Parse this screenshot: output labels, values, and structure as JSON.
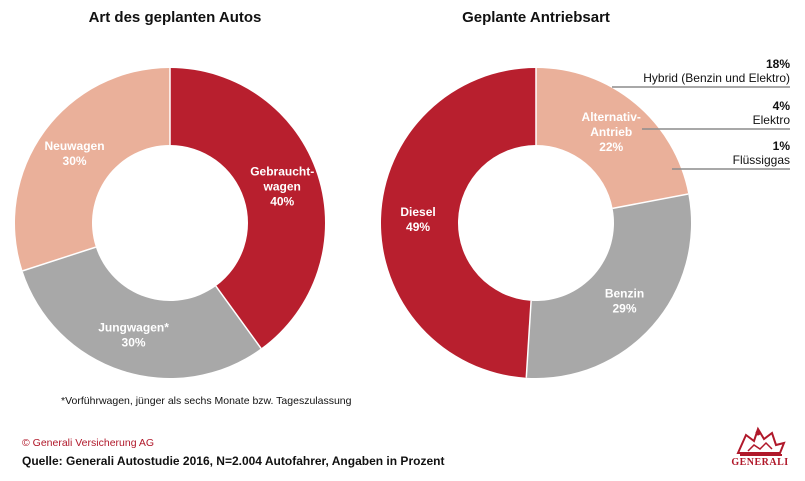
{
  "chart_data": [
    {
      "type": "pie",
      "title": "Art des geplanten Autos",
      "donut": true,
      "slices": [
        {
          "label": [
            "Gebraucht-",
            "wagen"
          ],
          "value": 40,
          "pct_text": "40%",
          "color": "#b81f2e"
        },
        {
          "label": [
            "Jungwagen*"
          ],
          "value": 30,
          "pct_text": "30%",
          "color": "#a8a8a8"
        },
        {
          "label": [
            "Neuwagen"
          ],
          "value": 30,
          "pct_text": "30%",
          "color": "#eab09a"
        }
      ]
    },
    {
      "type": "pie",
      "title": "Geplante Antriebsart",
      "donut": true,
      "slices": [
        {
          "label": [
            "Alternativ-",
            "Antrieb"
          ],
          "value": 22,
          "pct_text": "22%",
          "color": "#eab09a"
        },
        {
          "label": [
            "Benzin"
          ],
          "value": 29,
          "pct_text": "29%",
          "color": "#a8a8a8"
        },
        {
          "label": [
            "Diesel"
          ],
          "value": 49,
          "pct_text": "49%",
          "color": "#b81f2e"
        }
      ],
      "annotations": [
        {
          "pct_text": "18%",
          "name": "Hybrid (Benzin und Elektro)",
          "value": 18
        },
        {
          "pct_text": "4%",
          "name": "Elektro",
          "value": 4
        },
        {
          "pct_text": "1%",
          "name": "Flüssiggas",
          "value": 1
        }
      ]
    }
  ],
  "footnote": "*Vorführwagen, jünger als sechs Monate bzw. Tageszulassung",
  "copyright": "© Generali Versicherung AG",
  "source": "Quelle: Generali Autostudie 2016, N=2.004 Autofahrer, Angaben in Prozent",
  "logo_text": "GENERALI",
  "colors": {
    "accent_red": "#b81f2e",
    "grey": "#a8a8a8",
    "salmon": "#eab09a",
    "line": "#8c8c8c"
  }
}
